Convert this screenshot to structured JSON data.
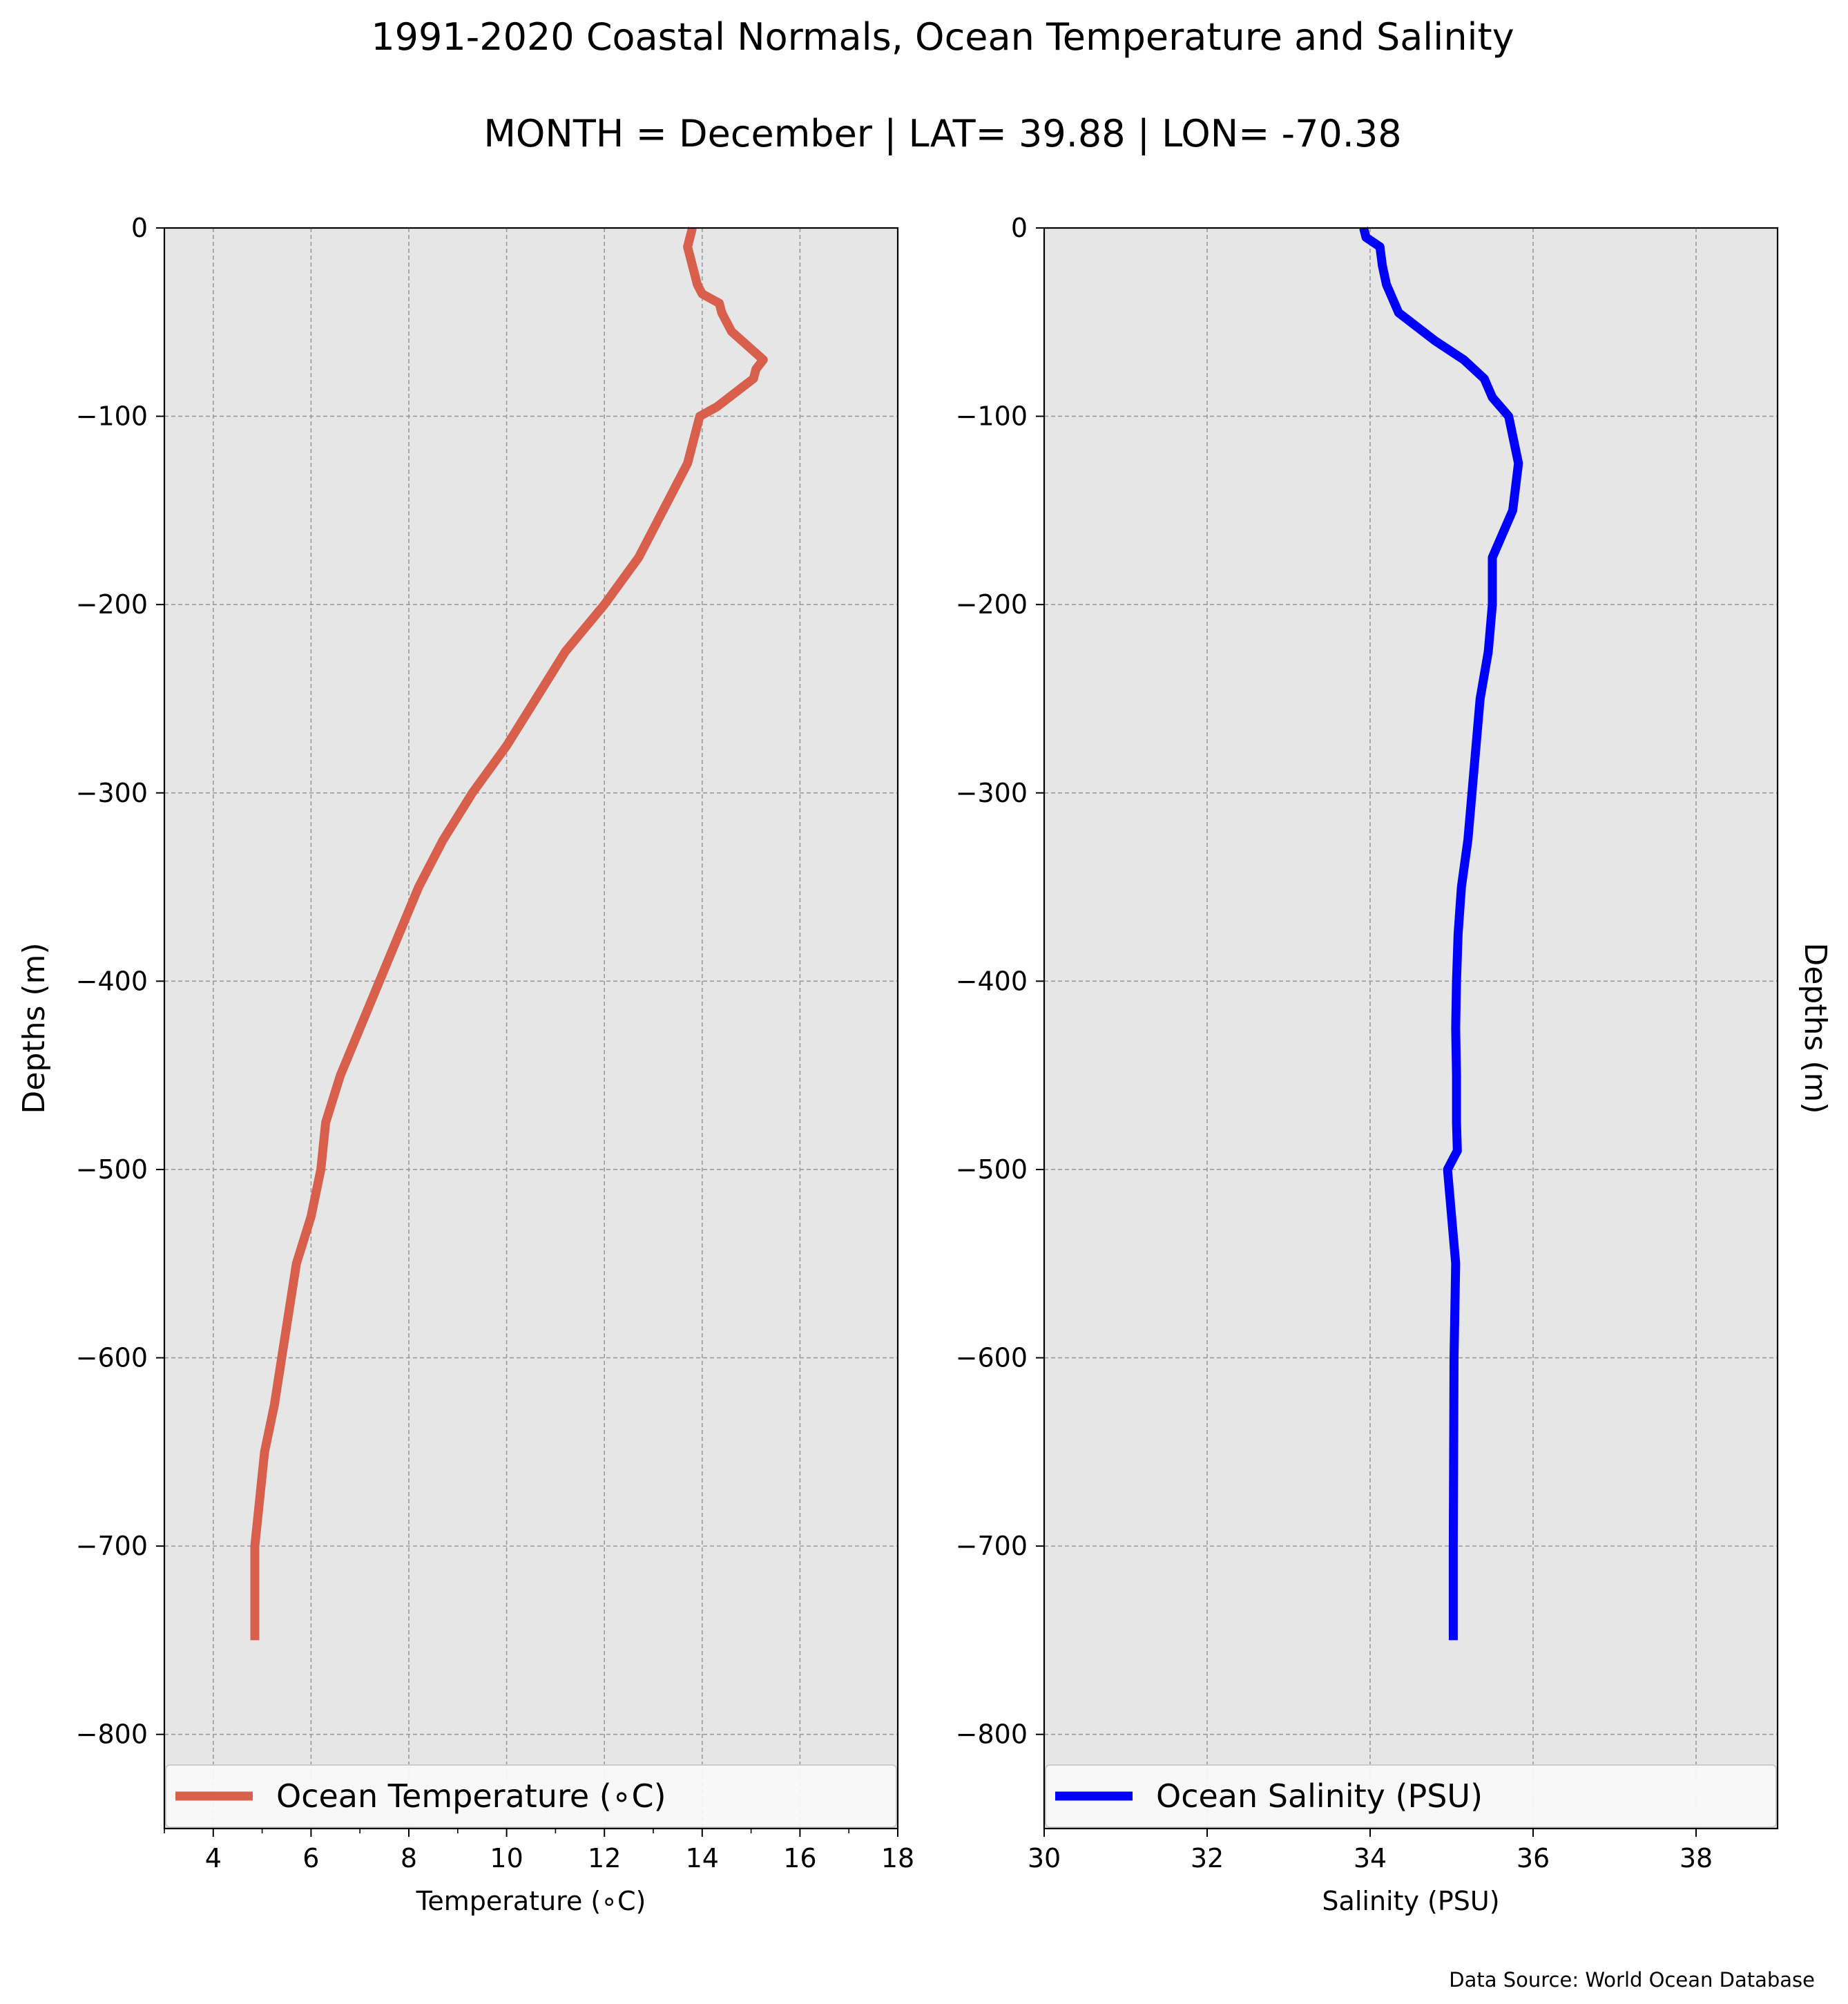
{
  "title_line1": "1991-2020 Coastal Normals, Ocean Temperature and Salinity",
  "title_line2": "MONTH = December | LAT= 39.88 | LON= -70.38",
  "source": "Data Source: World Ocean Database",
  "colors": {
    "background": "#e6e6e6",
    "grid": "#9a9a9a",
    "temperature": "#d75f4c",
    "salinity": "#0000ff"
  },
  "chart_data": [
    {
      "type": "line",
      "xlabel": "Temperature (∘C)",
      "ylabel": "Depths (m)",
      "xlim": [
        3,
        18
      ],
      "ylim": [
        -850,
        0
      ],
      "xticks": [
        4,
        6,
        8,
        10,
        12,
        14,
        16,
        18
      ],
      "yticks": [
        0,
        -100,
        -200,
        -300,
        -400,
        -500,
        -600,
        -700,
        -800
      ],
      "grid": true,
      "legend_position": "bottom",
      "series": [
        {
          "name": "Ocean Temperature (∘C)",
          "x": [
            13.8,
            13.75,
            13.7,
            13.8,
            13.85,
            13.9,
            14.0,
            14.35,
            14.4,
            14.6,
            15.25,
            15.1,
            15.05,
            14.8,
            14.3,
            13.95,
            13.7,
            13.2,
            12.7,
            12.0,
            11.2,
            10.6,
            10.0,
            9.3,
            8.7,
            8.2,
            7.8,
            7.4,
            7.0,
            6.6,
            6.3,
            6.2,
            6.0,
            5.7,
            5.4,
            5.25,
            5.05,
            4.85,
            4.85
          ],
          "y": [
            0,
            -5,
            -10,
            -20,
            -25,
            -30,
            -35,
            -40,
            -45,
            -55,
            -70,
            -75,
            -80,
            -85,
            -95,
            -100,
            -125,
            -150,
            -175,
            -200,
            -225,
            -250,
            -275,
            -300,
            -325,
            -350,
            -375,
            -400,
            -425,
            -450,
            -475,
            -500,
            -525,
            -550,
            -600,
            -625,
            -650,
            -700,
            -750
          ]
        }
      ]
    },
    {
      "type": "line",
      "xlabel": "Salinity (PSU)",
      "ylabel": "Depths (m)",
      "xlim": [
        30,
        39
      ],
      "ylim": [
        -850,
        0
      ],
      "xticks": [
        30,
        32,
        34,
        36,
        38
      ],
      "yticks": [
        0,
        -100,
        -200,
        -300,
        -400,
        -500,
        -600,
        -700,
        -800
      ],
      "grid": true,
      "legend_position": "bottom",
      "series": [
        {
          "name": "Ocean Salinity (PSU)",
          "x": [
            33.92,
            33.95,
            34.12,
            34.15,
            34.2,
            34.35,
            34.5,
            34.8,
            35.15,
            35.4,
            35.5,
            35.7,
            35.82,
            35.75,
            35.5,
            35.5,
            35.45,
            35.35,
            35.3,
            35.25,
            35.2,
            35.12,
            35.08,
            35.06,
            35.05,
            35.06,
            35.06,
            35.07,
            34.95,
            35.05,
            35.03,
            35.02,
            35.02
          ],
          "y": [
            0,
            -5,
            -10,
            -20,
            -30,
            -45,
            -50,
            -60,
            -70,
            -80,
            -90,
            -100,
            -125,
            -150,
            -175,
            -200,
            -225,
            -250,
            -275,
            -300,
            -325,
            -350,
            -375,
            -400,
            -425,
            -450,
            -475,
            -490,
            -500,
            -550,
            -600,
            -700,
            -750
          ]
        }
      ]
    }
  ]
}
